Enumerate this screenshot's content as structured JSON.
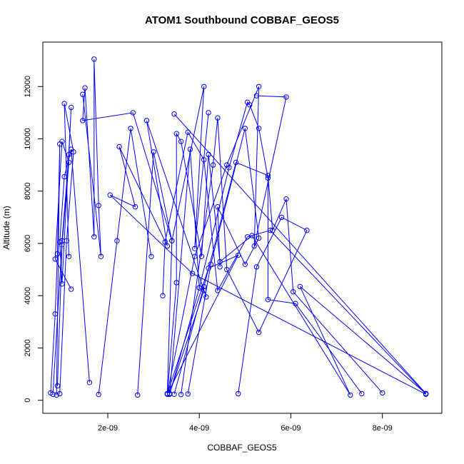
{
  "chart_data": {
    "type": "scatter",
    "title": "ATOM1 Southbound COBBAF_GEOS5",
    "xlabel": "COBBAF_GEOS5",
    "ylabel": "Altitude (m)",
    "xlim": [
      5.8e-10,
      9.3e-09
    ],
    "ylim": [
      -500,
      13700
    ],
    "x_ticks": [
      {
        "value": 2e-09,
        "label": "2e-09"
      },
      {
        "value": 4e-09,
        "label": "4e-09"
      },
      {
        "value": 6e-09,
        "label": "6e-09"
      },
      {
        "value": 8e-09,
        "label": "8e-09"
      }
    ],
    "y_ticks": [
      {
        "value": 0,
        "label": "0"
      },
      {
        "value": 2000,
        "label": "2000"
      },
      {
        "value": 4000,
        "label": "4000"
      },
      {
        "value": 6000,
        "label": "6000"
      },
      {
        "value": 8000,
        "label": "8000"
      },
      {
        "value": 10000,
        "label": "10000"
      },
      {
        "value": 12000,
        "label": "12000"
      }
    ],
    "grid": false,
    "marker": "open-circle",
    "connected": true,
    "color": "#0000ff",
    "profiles": [
      [
        [
          7.5e-10,
          280
        ],
        [
          8.5e-10,
          3300
        ],
        [
          9e-10,
          5600
        ],
        [
          9.5e-10,
          9800
        ],
        [
          8.8e-10,
          200
        ]
      ],
      [
        [
          8e-10,
          230
        ],
        [
          1e-09,
          6100
        ],
        [
          1.15e-09,
          9400
        ],
        [
          1.2e-09,
          11200
        ],
        [
          1e-09,
          4450
        ],
        [
          9.5e-10,
          6050
        ],
        [
          1.05e-09,
          8550
        ],
        [
          1.2e-09,
          9600
        ],
        [
          1.6e-09,
          680
        ]
      ],
      [
        [
          9.5e-10,
          250
        ],
        [
          1.1e-09,
          6100
        ],
        [
          1.25e-09,
          9500
        ],
        [
          1.05e-09,
          11350
        ],
        [
          1.15e-09,
          5500
        ]
      ],
      [
        [
          9e-10,
          550
        ],
        [
          1e-09,
          5950
        ],
        [
          1.15e-09,
          9100
        ],
        [
          1e-09,
          9900
        ],
        [
          8.5e-10,
          5400
        ],
        [
          1.2e-09,
          4250
        ]
      ],
      [
        [
          1.8e-09,
          220
        ],
        [
          2.2e-09,
          6100
        ],
        [
          2.5e-09,
          10400
        ],
        [
          2.95e-09,
          5500
        ]
      ],
      [
        [
          2.65e-09,
          200
        ],
        [
          3e-09,
          9500
        ],
        [
          3.4e-09,
          6100
        ],
        [
          2.55e-09,
          11000
        ],
        [
          1.45e-09,
          10700
        ],
        [
          1.5e-09,
          11950
        ],
        [
          1.7e-09,
          6250
        ],
        [
          1.7e-09,
          13050
        ],
        [
          1.8e-09,
          7450
        ],
        [
          1.85e-09,
          5500
        ],
        [
          1.45e-09,
          11700
        ]
      ],
      [
        [
          3.3e-09,
          240
        ],
        [
          3.4e-09,
          6100
        ],
        [
          4.1e-09,
          12000
        ],
        [
          3.9e-09,
          5800
        ],
        [
          4.2e-09,
          11000
        ]
      ],
      [
        [
          3.3e-09,
          250
        ],
        [
          3.9e-09,
          5500
        ],
        [
          4.6e-09,
          9000
        ],
        [
          5.3e-09,
          12000
        ],
        [
          5.2e-09,
          5900
        ],
        [
          5.9e-09,
          11600
        ],
        [
          5.25e-09,
          11650
        ]
      ],
      [
        [
          3.35e-09,
          230
        ],
        [
          4e-09,
          4300
        ],
        [
          4.65e-09,
          8900
        ],
        [
          5.05e-09,
          11400
        ],
        [
          5.1e-09,
          11300
        ],
        [
          5.3e-09,
          10400
        ],
        [
          5.5e-09,
          8500
        ],
        [
          5.5e-09,
          3850
        ],
        [
          6.1e-09,
          3700
        ],
        [
          7.55e-09,
          250
        ]
      ],
      [
        [
          3.45e-09,
          230
        ],
        [
          4.1e-09,
          4350
        ],
        [
          4.8e-09,
          9100
        ],
        [
          5.5e-09,
          8600
        ],
        [
          5.6e-09,
          6500
        ],
        [
          5.9e-09,
          7700
        ],
        [
          6.05e-09,
          4150
        ],
        [
          8e-09,
          280
        ]
      ],
      [
        [
          3.75e-09,
          240
        ],
        [
          4.25e-09,
          5200
        ],
        [
          5e-09,
          10400
        ],
        [
          5.3e-09,
          6200
        ],
        [
          5e-09,
          5200
        ],
        [
          4.4e-09,
          7400
        ],
        [
          4.45e-09,
          5100
        ]
      ],
      [
        [
          3.6e-09,
          220
        ],
        [
          4.3e-09,
          9000
        ],
        [
          4.4e-09,
          10800
        ],
        [
          4.6e-09,
          5000
        ],
        [
          5.3e-09,
          2600
        ],
        [
          6.35e-09,
          6500
        ],
        [
          5.8e-09,
          7000
        ],
        [
          5.25e-09,
          5100
        ],
        [
          4.85e-09,
          250
        ]
      ],
      [
        [
          3.3e-09,
          230
        ],
        [
          3.5e-09,
          4500
        ],
        [
          3.5e-09,
          10200
        ],
        [
          3.6e-09,
          9900
        ],
        [
          4.05e-09,
          5500
        ],
        [
          4.2e-09,
          9400
        ],
        [
          4.45e-09,
          5300
        ],
        [
          5.15e-09,
          6300
        ],
        [
          7.3e-09,
          200
        ],
        [
          6.2e-09,
          4350
        ],
        [
          8.95e-09,
          260
        ],
        [
          3.45e-09,
          10950
        ]
      ],
      [
        [
          8.95e-09,
          240
        ],
        [
          5.55e-09,
          6500
        ],
        [
          5.05e-09,
          6250
        ],
        [
          4.4e-09,
          4200
        ],
        [
          4.1e-09,
          9200
        ],
        [
          3.75e-09,
          10250
        ],
        [
          3.25e-09,
          6050
        ],
        [
          3.2e-09,
          4000
        ]
      ],
      [
        [
          8.95e-09,
          230
        ],
        [
          3.85e-09,
          4850
        ],
        [
          2.05e-09,
          7850
        ],
        [
          2.6e-09,
          7400
        ],
        [
          2.25e-09,
          9700
        ],
        [
          3.3e-09,
          5900
        ],
        [
          2.85e-09,
          10700
        ],
        [
          4.15e-09,
          3950
        ]
      ],
      [
        [
          3.3e-09,
          250
        ],
        [
          4.2e-09,
          5050
        ],
        [
          4.85e-09,
          5550
        ],
        [
          3.3e-09,
          240
        ]
      ],
      [
        [
          3.35e-09,
          240
        ],
        [
          3.8e-09,
          9600
        ],
        [
          4e-09,
          4300
        ],
        [
          4.1e-09,
          4200
        ],
        [
          3.35e-09,
          260
        ]
      ]
    ]
  }
}
